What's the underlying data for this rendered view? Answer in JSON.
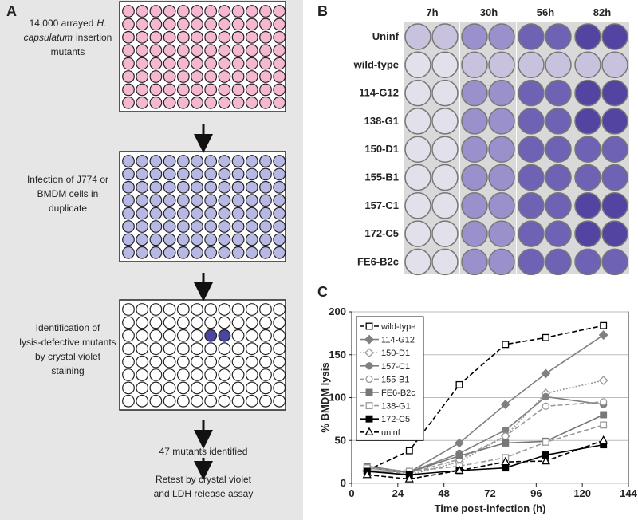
{
  "panel_a": {
    "label": "A",
    "step1": [
      "14,000 arrayed",
      "H.",
      "capsulatum",
      "insertion",
      "mutants"
    ],
    "step2": [
      "Infection of J774 or",
      "BMDM cells in",
      "duplicate"
    ],
    "step3": [
      "Identification of",
      "lysis-defective mutants",
      "by crystal violet",
      "staining"
    ],
    "step4": "47 mutants identified",
    "step5": [
      "Retest by crystal violet",
      "and LDH release assay"
    ]
  },
  "panel_b": {
    "label": "B",
    "columns": [
      "7h",
      "30h",
      "56h",
      "82h"
    ],
    "rows": [
      "Uninf",
      "wild-type",
      "114-G12",
      "138-G1",
      "150-D1",
      "155-B1",
      "157-C1",
      "172-C5",
      "FE6-B2c"
    ]
  },
  "chart_data": {
    "type": "line",
    "label": "C",
    "x_label": "Time post-infection (h)",
    "y_label": "% BMDM lysis",
    "x": [
      8,
      30,
      56,
      80,
      101,
      131
    ],
    "xlim": [
      0,
      144
    ],
    "xticks": [
      0,
      24,
      48,
      72,
      96,
      120,
      144
    ],
    "ylim": [
      0,
      200
    ],
    "yticks": [
      0,
      50,
      100,
      150,
      200
    ],
    "grid": true,
    "legend": "top-left",
    "series": [
      {
        "name": "wild-type",
        "color": "#000000",
        "dash": "dashed",
        "marker": "square",
        "filled": false,
        "values": [
          15,
          38,
          115,
          162,
          170,
          184
        ]
      },
      {
        "name": "114-G12",
        "color": "#808080",
        "dash": "solid",
        "marker": "diamond",
        "filled": true,
        "values": [
          15,
          13,
          47,
          92,
          128,
          173
        ]
      },
      {
        "name": "150-D1",
        "color": "#999999",
        "dash": "dotted",
        "marker": "diamond",
        "filled": false,
        "values": [
          14,
          10,
          25,
          55,
          105,
          120
        ]
      },
      {
        "name": "157-C1",
        "color": "#808080",
        "dash": "solid",
        "marker": "circle",
        "filled": true,
        "values": [
          18,
          13,
          35,
          62,
          101,
          92
        ]
      },
      {
        "name": "155-B1",
        "color": "#999999",
        "dash": "dashed",
        "marker": "circle",
        "filled": false,
        "values": [
          15,
          12,
          28,
          55,
          90,
          95
        ]
      },
      {
        "name": "FE6-B2c",
        "color": "#777777",
        "dash": "solid",
        "marker": "square",
        "filled": true,
        "values": [
          20,
          13,
          32,
          47,
          49,
          80
        ]
      },
      {
        "name": "138-G1",
        "color": "#999999",
        "dash": "dashed",
        "marker": "square",
        "filled": false,
        "values": [
          18,
          14,
          20,
          30,
          48,
          68
        ]
      },
      {
        "name": "172-C5",
        "color": "#000000",
        "dash": "solid",
        "marker": "square",
        "filled": true,
        "values": [
          14,
          10,
          15,
          18,
          33,
          45
        ]
      },
      {
        "name": "uninf",
        "color": "#000000",
        "dash": "dashed",
        "marker": "triangle",
        "filled": false,
        "values": [
          10,
          5,
          15,
          25,
          26,
          50
        ]
      }
    ]
  }
}
